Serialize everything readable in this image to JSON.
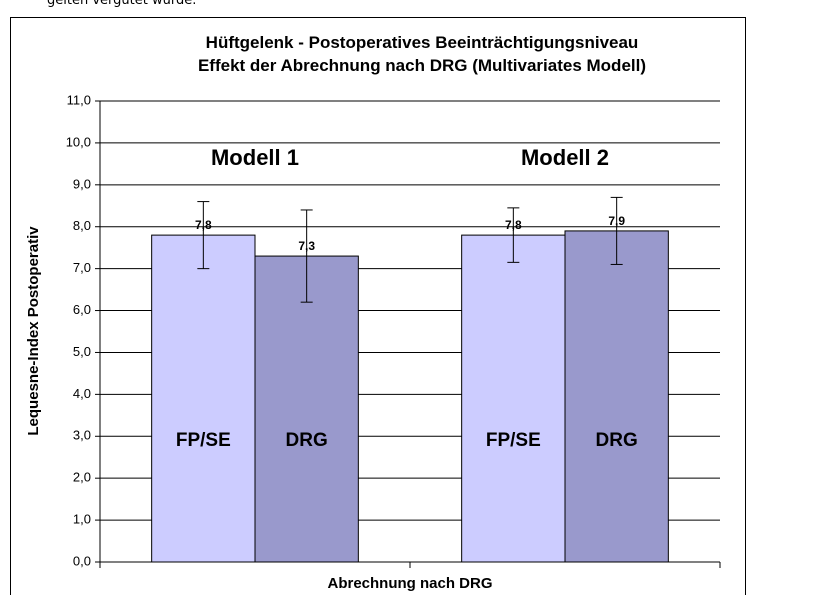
{
  "page_text": "gelten vergütet wurde.",
  "chart_data": {
    "type": "bar",
    "title": "Hüftgelenk - Postoperatives Beeinträchtigungsniveau",
    "subtitle": "Effekt der Abrechnung nach DRG (Multivariates Modell)",
    "x_label": "Abrechnung nach DRG",
    "y_label": "Lequesne-Index Postoperativ",
    "categories": [
      "Modell 1",
      "Modell 2"
    ],
    "series": [
      {
        "name": "FP/SE",
        "color": "#ccccff",
        "values": [
          7.8,
          7.8
        ],
        "value_labels": [
          "7,8",
          "7,8"
        ],
        "errors": [
          0.8,
          0.65
        ]
      },
      {
        "name": "DRG",
        "color": "#9999cc",
        "values": [
          7.3,
          7.9
        ],
        "value_labels": [
          "7,3",
          "7,9"
        ],
        "errors": [
          1.1,
          0.8
        ]
      }
    ],
    "ylim": [
      0,
      11
    ],
    "yticks": [
      {
        "value": 0,
        "label": "0,0"
      },
      {
        "value": 1,
        "label": "1,0"
      },
      {
        "value": 2,
        "label": "2,0"
      },
      {
        "value": 3,
        "label": "3,0"
      },
      {
        "value": 4,
        "label": "4,0"
      },
      {
        "value": 5,
        "label": "5,0"
      },
      {
        "value": 6,
        "label": "6,0"
      },
      {
        "value": 7,
        "label": "7,0"
      },
      {
        "value": 8,
        "label": "8,0"
      },
      {
        "value": 9,
        "label": "9,0"
      },
      {
        "value": 10,
        "label": "10,0"
      },
      {
        "value": 11,
        "label": "11,0"
      }
    ],
    "grid": true
  }
}
